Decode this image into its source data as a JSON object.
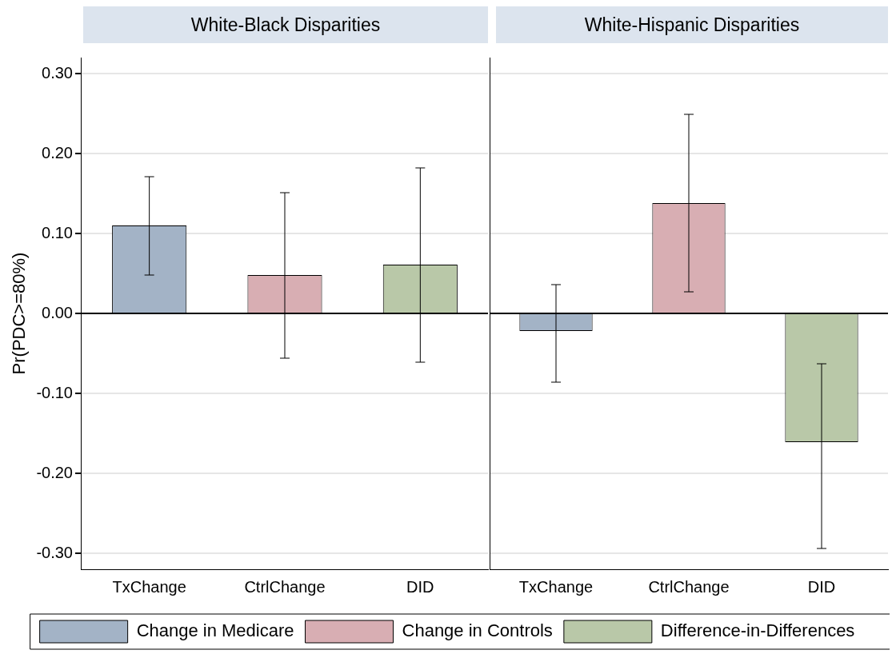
{
  "chart_data": [
    {
      "type": "bar",
      "title": "White-Black Disparities",
      "ylabel": "Pr(PDC>=80%)",
      "categories": [
        "TxChange",
        "CtrlChange",
        "DID"
      ],
      "series": [
        {
          "name": "Change in Medicare",
          "color": "#a3b3c6",
          "values": [
            0.11,
            null,
            null
          ],
          "errors": [
            [
              0.048,
              0.171
            ],
            null,
            null
          ]
        },
        {
          "name": "Change in Controls",
          "color": "#d8aeb3",
          "values": [
            null,
            0.048,
            null
          ],
          "errors": [
            null,
            [
              -0.056,
              0.151
            ],
            null
          ]
        },
        {
          "name": "Difference-in-Differences",
          "color": "#b9c8a8",
          "values": [
            null,
            null,
            0.061
          ],
          "errors": [
            null,
            null,
            [
              -0.061,
              0.182
            ]
          ]
        }
      ],
      "ylim": [
        -0.32,
        0.32
      ],
      "yticks": [
        {
          "value": -0.3,
          "label": "-0.30"
        },
        {
          "value": -0.2,
          "label": "-0.20"
        },
        {
          "value": -0.1,
          "label": "-0.10"
        },
        {
          "value": 0,
          "label": "0.00"
        },
        {
          "value": 0.1,
          "label": "0.10"
        },
        {
          "value": 0.2,
          "label": "0.20"
        },
        {
          "value": 0.3,
          "label": "0.30"
        }
      ],
      "ref_lines": [
        {
          "axis": "y",
          "value": 0,
          "color": "#000000"
        }
      ],
      "grid": "y",
      "legend": "bottom"
    },
    {
      "type": "bar",
      "title": "White-Hispanic Disparities",
      "categories": [
        "TxChange",
        "CtrlChange",
        "DID"
      ],
      "series": [
        {
          "color": "#a3b3c6",
          "values": [
            -0.022,
            null,
            null
          ],
          "errors": [
            [
              -0.086,
              0.036
            ],
            null,
            null
          ]
        },
        {
          "color": "#d8aeb3",
          "values": [
            null,
            0.138,
            null
          ],
          "errors": [
            null,
            [
              0.027,
              0.249
            ],
            null
          ]
        },
        {
          "color": "#b9c8a8",
          "values": [
            null,
            null,
            -0.161
          ],
          "errors": [
            null,
            null,
            [
              -0.294,
              -0.063
            ]
          ]
        }
      ],
      "ylim": [
        -0.32,
        0.32
      ],
      "yticks": [
        -0.3,
        -0.2,
        -0.1,
        0,
        0.1,
        0.2,
        0.3
      ],
      "ref_lines": [
        {
          "axis": "y",
          "value": 0,
          "color": "#000000"
        }
      ],
      "grid": "y",
      "tick_labels": "x"
    }
  ]
}
